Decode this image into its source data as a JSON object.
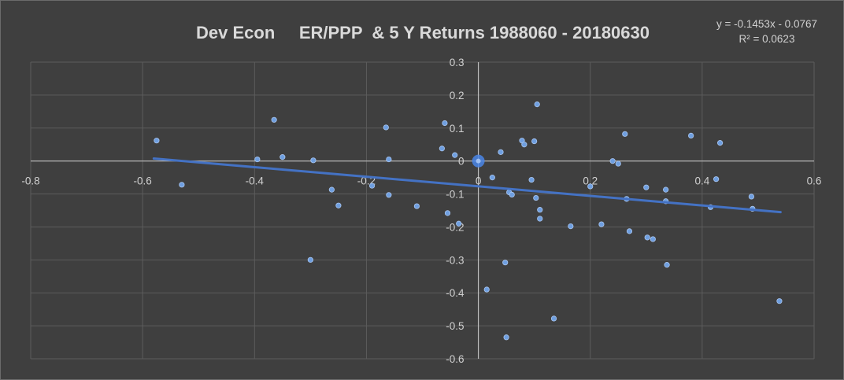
{
  "chart_data": {
    "type": "scatter",
    "title": "Dev Econ     ER/PPP  & 5 Y Returns 1988060 - 20180630",
    "trendline": {
      "slope": -0.1453,
      "intercept": -0.0767,
      "x_start": -0.58,
      "x_end": 0.54,
      "equation_text": "y = -0.1453x - 0.0767",
      "r2_text": "R² = 0.0623",
      "color": "#4472c4"
    },
    "xlim": [
      -0.8,
      0.6
    ],
    "ylim": [
      -0.6,
      0.3
    ],
    "x_ticks": [
      {
        "value": -0.8,
        "label": "-0.8"
      },
      {
        "value": -0.6,
        "label": "-0.6"
      },
      {
        "value": -0.4,
        "label": "-0.4"
      },
      {
        "value": -0.2,
        "label": "-0.2"
      },
      {
        "value": 0,
        "label": "0"
      },
      {
        "value": 0.2,
        "label": "0.2"
      },
      {
        "value": 0.4,
        "label": "0.4"
      },
      {
        "value": 0.6,
        "label": "0.6"
      }
    ],
    "y_ticks": [
      {
        "value": 0.3,
        "label": "0.3"
      },
      {
        "value": 0.2,
        "label": "0.2"
      },
      {
        "value": 0.1,
        "label": "0.1"
      },
      {
        "value": 0,
        "label": "0"
      },
      {
        "value": -0.1,
        "label": "-0.1"
      },
      {
        "value": -0.2,
        "label": "-0.2"
      },
      {
        "value": -0.3,
        "label": "-0.3"
      },
      {
        "value": -0.4,
        "label": "-0.4"
      },
      {
        "value": -0.5,
        "label": "-0.5"
      },
      {
        "value": -0.6,
        "label": "-0.6"
      }
    ],
    "grid": true,
    "point_color": "#6f9fe0",
    "highlight_point": {
      "x": 0,
      "y": 0,
      "color": "#4a86e8"
    },
    "points": [
      {
        "x": -0.575,
        "y": 0.062
      },
      {
        "x": -0.53,
        "y": -0.072
      },
      {
        "x": -0.395,
        "y": 0.005
      },
      {
        "x": -0.365,
        "y": 0.125
      },
      {
        "x": -0.35,
        "y": 0.012
      },
      {
        "x": -0.295,
        "y": 0.002
      },
      {
        "x": -0.3,
        "y": -0.3
      },
      {
        "x": -0.262,
        "y": -0.087
      },
      {
        "x": -0.25,
        "y": -0.135
      },
      {
        "x": -0.19,
        "y": -0.075
      },
      {
        "x": -0.165,
        "y": 0.102
      },
      {
        "x": -0.16,
        "y": 0.005
      },
      {
        "x": -0.16,
        "y": -0.103
      },
      {
        "x": -0.11,
        "y": -0.137
      },
      {
        "x": -0.065,
        "y": 0.038
      },
      {
        "x": -0.06,
        "y": 0.115
      },
      {
        "x": -0.055,
        "y": -0.158
      },
      {
        "x": -0.042,
        "y": 0.018
      },
      {
        "x": -0.035,
        "y": -0.19
      },
      {
        "x": 0.015,
        "y": -0.39
      },
      {
        "x": 0.025,
        "y": -0.05
      },
      {
        "x": 0.04,
        "y": 0.027
      },
      {
        "x": 0.048,
        "y": -0.308
      },
      {
        "x": 0.05,
        "y": -0.535
      },
      {
        "x": 0.055,
        "y": -0.095
      },
      {
        "x": 0.06,
        "y": -0.102
      },
      {
        "x": 0.078,
        "y": 0.062
      },
      {
        "x": 0.082,
        "y": 0.05
      },
      {
        "x": 0.095,
        "y": -0.057
      },
      {
        "x": 0.1,
        "y": 0.06
      },
      {
        "x": 0.103,
        "y": -0.112
      },
      {
        "x": 0.105,
        "y": 0.172
      },
      {
        "x": 0.11,
        "y": -0.148
      },
      {
        "x": 0.11,
        "y": -0.175
      },
      {
        "x": 0.135,
        "y": -0.478
      },
      {
        "x": 0.165,
        "y": -0.198
      },
      {
        "x": 0.2,
        "y": -0.077
      },
      {
        "x": 0.22,
        "y": -0.192
      },
      {
        "x": 0.24,
        "y": 0.0
      },
      {
        "x": 0.25,
        "y": -0.008
      },
      {
        "x": 0.262,
        "y": 0.082
      },
      {
        "x": 0.265,
        "y": -0.115
      },
      {
        "x": 0.27,
        "y": -0.213
      },
      {
        "x": 0.3,
        "y": -0.08
      },
      {
        "x": 0.302,
        "y": -0.232
      },
      {
        "x": 0.312,
        "y": -0.237
      },
      {
        "x": 0.335,
        "y": -0.087
      },
      {
        "x": 0.335,
        "y": -0.122
      },
      {
        "x": 0.337,
        "y": -0.315
      },
      {
        "x": 0.38,
        "y": 0.077
      },
      {
        "x": 0.415,
        "y": -0.14
      },
      {
        "x": 0.425,
        "y": -0.055
      },
      {
        "x": 0.432,
        "y": 0.055
      },
      {
        "x": 0.488,
        "y": -0.108
      },
      {
        "x": 0.49,
        "y": -0.145
      },
      {
        "x": 0.538,
        "y": -0.425
      }
    ]
  }
}
